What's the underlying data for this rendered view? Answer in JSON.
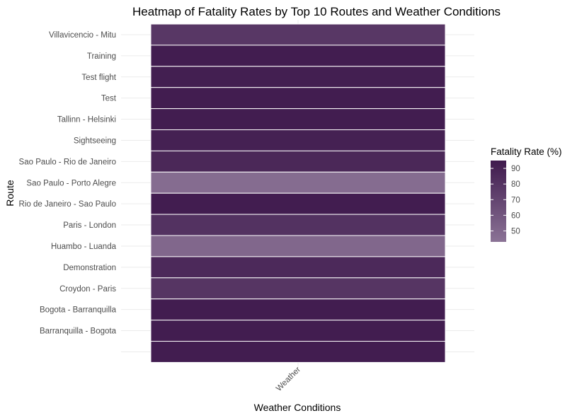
{
  "chart_data": {
    "type": "heatmap",
    "title": "Heatmap of Fatality Rates by Top 10 Routes and Weather Conditions",
    "xlabel": "Weather Conditions",
    "ylabel": "Route",
    "x_categories": [
      "Weather"
    ],
    "y_categories": [
      "Villavicencio - Mitu",
      "Training",
      "Test flight",
      "Test",
      "Tallinn - Helsinki",
      "Sightseeing",
      "Sao Paulo - Rio de Janeiro",
      "Sao Paulo - Porto Alegre",
      "Rio de Janeiro - Sao Paulo",
      "Paris - London",
      "Huambo - Luanda",
      "Demonstration",
      "Croydon - Paris",
      "Bogota - Barranquilla",
      "Barranquilla - Bogota",
      ""
    ],
    "values": [
      78,
      93,
      92,
      93,
      93,
      91,
      87,
      47,
      93,
      81,
      50,
      86,
      79,
      93,
      93,
      93
    ],
    "legend": {
      "title": "Fatality Rate (%)",
      "ticks": [
        90,
        80,
        70,
        60,
        50
      ],
      "min": 43,
      "max": 95,
      "low_color": "#8b7396",
      "high_color": "#3f1a4d",
      "position": "right"
    },
    "grid": true
  }
}
